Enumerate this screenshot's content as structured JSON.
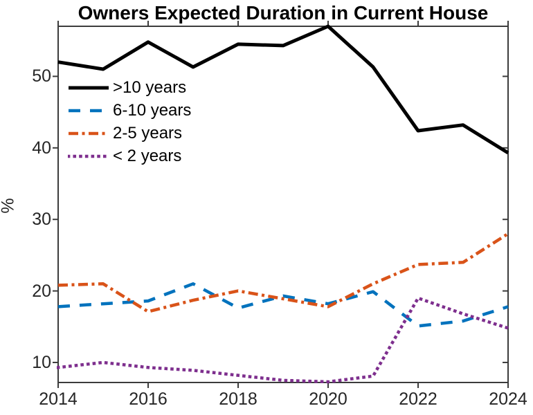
{
  "chart_data": {
    "type": "line",
    "title": "Owners Expected Duration in Current House",
    "xlabel": "",
    "ylabel": "%",
    "x": [
      2014,
      2015,
      2016,
      2017,
      2018,
      2019,
      2020,
      2021,
      2022,
      2023,
      2024
    ],
    "xlim": [
      2014,
      2024
    ],
    "ylim": [
      7.2,
      57.0
    ],
    "x_ticks": [
      2014,
      2016,
      2018,
      2020,
      2022,
      2024
    ],
    "y_ticks": [
      10,
      20,
      30,
      40,
      50
    ],
    "grid": false,
    "legend_position": "upper-left-inside",
    "axis_color": "#3b3b3b",
    "tick_label_color": "#262626",
    "series": [
      {
        "name": ">10 years",
        "color": "#000000",
        "style": "solid",
        "values": [
          52.0,
          51.0,
          54.8,
          51.3,
          54.5,
          54.3,
          57.0,
          51.3,
          42.4,
          43.2,
          39.3
        ]
      },
      {
        "name": "6-10 years",
        "color": "#0072BD",
        "style": "dashed",
        "values": [
          17.8,
          18.2,
          18.6,
          21.0,
          17.6,
          19.3,
          18.2,
          19.9,
          15.1,
          15.8,
          17.8
        ]
      },
      {
        "name": "2-5 years",
        "color": "#D95319",
        "style": "dash-dot",
        "values": [
          20.8,
          21.0,
          17.1,
          18.7,
          20.0,
          18.9,
          17.8,
          21.0,
          23.7,
          24.0,
          28.0
        ]
      },
      {
        "name": "< 2 years",
        "color": "#7E2F8E",
        "style": "dotted",
        "values": [
          9.3,
          10.0,
          9.3,
          8.9,
          8.2,
          7.5,
          7.3,
          8.1,
          19.0,
          16.8,
          14.8
        ]
      }
    ]
  }
}
